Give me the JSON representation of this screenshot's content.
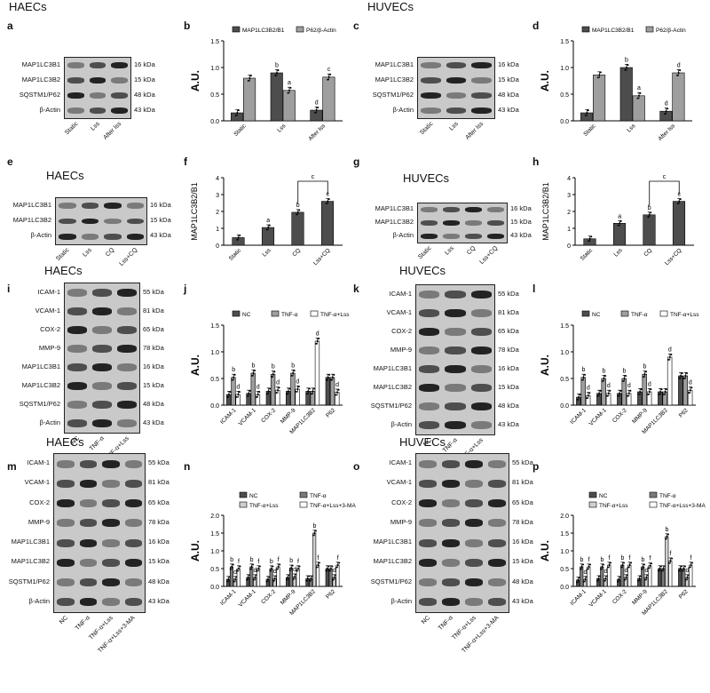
{
  "headers": {
    "a": "HAECs",
    "c": "HUVECs",
    "e": "HAECs",
    "g": "HUVECs",
    "i": "HAECs",
    "k": "HUVECs",
    "m": "HAECs",
    "o": "HUVECs"
  },
  "panel_letters": [
    "a",
    "b",
    "c",
    "d",
    "e",
    "f",
    "g",
    "h",
    "i",
    "j",
    "k",
    "l",
    "m",
    "n",
    "o",
    "p"
  ],
  "blots": {
    "a": {
      "rows": [
        {
          "label": "MAP1LC3B1",
          "kda": "16 kDa"
        },
        {
          "label": "MAP1LC3B2",
          "kda": "15 kDa"
        },
        {
          "label": "SQSTM1/P62",
          "kda": "48 kDa"
        },
        {
          "label": "β-Actin",
          "kda": "43 kDa"
        }
      ],
      "lanes": [
        "Static",
        "Lss",
        "After lss"
      ]
    },
    "c": {
      "rows": [
        {
          "label": "MAP1LC3B1",
          "kda": "16 kDa"
        },
        {
          "label": "MAP1LC3B2",
          "kda": "15 kDa"
        },
        {
          "label": "SQSTM1/P62",
          "kda": "48 kDa"
        },
        {
          "label": "β-Actin",
          "kda": "43 kDa"
        }
      ],
      "lanes": [
        "Static",
        "Lss",
        "After lss"
      ]
    },
    "e": {
      "rows": [
        {
          "label": "MAP1LC3B1",
          "kda": "16 kDa"
        },
        {
          "label": "MAP1LC3B2",
          "kda": "15 kDa"
        },
        {
          "label": "β-Actin",
          "kda": "43 kDa"
        }
      ],
      "lanes": [
        "Static",
        "Lss",
        "CQ",
        "Lss+CQ"
      ]
    },
    "g": {
      "rows": [
        {
          "label": "MAP1LC3B1",
          "kda": "16 kDa"
        },
        {
          "label": "MAP1LC3B2",
          "kda": "15 kDa"
        },
        {
          "label": "β-Actin",
          "kda": "43 kDa"
        }
      ],
      "lanes": [
        "Static",
        "Lss",
        "CQ",
        "Lss+CQ"
      ]
    },
    "i": {
      "rows": [
        {
          "label": "ICAM-1",
          "kda": "55 kDa"
        },
        {
          "label": "VCAM-1",
          "kda": "81 kDa"
        },
        {
          "label": "COX-2",
          "kda": "65 kDa"
        },
        {
          "label": "MMP-9",
          "kda": "78 kDa"
        },
        {
          "label": "MAP1LC3B1",
          "kda": "16 kDa"
        },
        {
          "label": "MAP1LC3B2",
          "kda": "15 kDa"
        },
        {
          "label": "SQSTM1/P62",
          "kda": "48 kDa"
        },
        {
          "label": "β-Actin",
          "kda": "43 kDa"
        }
      ],
      "lanes": [
        "NC",
        "TNF-α",
        "TNF-α+Lss"
      ]
    },
    "k": {
      "rows": [
        {
          "label": "ICAM-1",
          "kda": "55 kDa"
        },
        {
          "label": "VCAM-1",
          "kda": "81 kDa"
        },
        {
          "label": "COX-2",
          "kda": "65 kDa"
        },
        {
          "label": "MMP-9",
          "kda": "78 kDa"
        },
        {
          "label": "MAP1LC3B1",
          "kda": "16 kDa"
        },
        {
          "label": "MAP1LC3B2",
          "kda": "15 kDa"
        },
        {
          "label": "SQSTM1/P62",
          "kda": "48 kDa"
        },
        {
          "label": "β-Actin",
          "kda": "43 kDa"
        }
      ],
      "lanes": [
        "NC",
        "TNF-α",
        "TNF-α+Lss"
      ]
    },
    "m": {
      "rows": [
        {
          "label": "ICAM-1",
          "kda": "55 kDa"
        },
        {
          "label": "VCAM-1",
          "kda": "81 kDa"
        },
        {
          "label": "COX-2",
          "kda": "65 kDa"
        },
        {
          "label": "MMP-9",
          "kda": "78 kDa"
        },
        {
          "label": "MAP1LC3B1",
          "kda": "16 kDa"
        },
        {
          "label": "MAP1LC3B2",
          "kda": "15 kDa"
        },
        {
          "label": "SQSTM1/P62",
          "kda": "48 kDa"
        },
        {
          "label": "β-Actin",
          "kda": "43 kDa"
        }
      ],
      "lanes": [
        "NC",
        "TNF-α",
        "TNF-α+Lss",
        "TNF-α+Lss+3-MA"
      ]
    },
    "o": {
      "rows": [
        {
          "label": "ICAM-1",
          "kda": "55 kDa"
        },
        {
          "label": "VCAM-1",
          "kda": "81 kDa"
        },
        {
          "label": "COX-2",
          "kda": "65 kDa"
        },
        {
          "label": "MMP-9",
          "kda": "78 kDa"
        },
        {
          "label": "MAP1LC3B1",
          "kda": "16 kDa"
        },
        {
          "label": "MAP1LC3B2",
          "kda": "15 kDa"
        },
        {
          "label": "SQSTM1/P62",
          "kda": "48 kDa"
        },
        {
          "label": "β-Actin",
          "kda": "43 kDa"
        }
      ],
      "lanes": [
        "NC",
        "TNF-α",
        "TNF-α+Lss",
        "TNF-α+Lss+3-MA"
      ]
    }
  },
  "chart_data": [
    {
      "id": "b",
      "type": "bar",
      "ylabel": "A.U.",
      "ylim": [
        0,
        1.5
      ],
      "yticks": [
        "0.0",
        "0.5",
        "1.0",
        "1.5"
      ],
      "categories": [
        "Static",
        "Lss",
        "After lss"
      ],
      "series": [
        {
          "name": "MAP1LC3B2/B1",
          "color": "#4d4d4d",
          "values": [
            0.15,
            0.9,
            0.2
          ]
        },
        {
          "name": "P62/β-Actin",
          "color": "#9e9e9e",
          "values": [
            0.8,
            0.57,
            0.82
          ]
        }
      ],
      "letters": [
        [
          "",
          ""
        ],
        [
          "b",
          "a"
        ],
        [
          "d",
          "c"
        ]
      ]
    },
    {
      "id": "d",
      "type": "bar",
      "ylabel": "A.U.",
      "ylim": [
        0,
        1.5
      ],
      "yticks": [
        "0.0",
        "0.5",
        "1.0",
        "1.5"
      ],
      "categories": [
        "Static",
        "Lss",
        "After lss"
      ],
      "series": [
        {
          "name": "MAP1LC3B2/B1",
          "color": "#4d4d4d",
          "values": [
            0.15,
            1.0,
            0.18
          ]
        },
        {
          "name": "P62/β-Actin",
          "color": "#9e9e9e",
          "values": [
            0.86,
            0.47,
            0.9
          ]
        }
      ],
      "letters": [
        [
          "",
          ""
        ],
        [
          "b",
          "a"
        ],
        [
          "d",
          "d"
        ]
      ]
    },
    {
      "id": "f",
      "type": "bar",
      "ylabel": "MAP1LC3B2/B1",
      "ylim": [
        0,
        4
      ],
      "yticks": [
        "0",
        "1",
        "2",
        "3",
        "4"
      ],
      "categories": [
        "Static",
        "Lss",
        "CQ",
        "Lss+CQ"
      ],
      "series": [
        {
          "name": "",
          "color": "#4d4d4d",
          "values": [
            0.45,
            1.05,
            1.95,
            2.6
          ]
        }
      ],
      "letters": [
        [
          ""
        ],
        [
          "a"
        ],
        [
          "b"
        ],
        [
          "c"
        ]
      ],
      "bracket": {
        "from": 2,
        "to": 3,
        "label": "c"
      }
    },
    {
      "id": "h",
      "type": "bar",
      "ylabel": "MAP1LC3B2/B1",
      "ylim": [
        0,
        4
      ],
      "yticks": [
        "0",
        "1",
        "2",
        "3",
        "4"
      ],
      "categories": [
        "Static",
        "Lss",
        "CQ",
        "Lss+CQ"
      ],
      "series": [
        {
          "name": "",
          "color": "#4d4d4d",
          "values": [
            0.38,
            1.3,
            1.8,
            2.6
          ]
        }
      ],
      "letters": [
        [
          ""
        ],
        [
          "a"
        ],
        [
          "b"
        ],
        [
          "c"
        ]
      ],
      "bracket": {
        "from": 2,
        "to": 3,
        "label": "c"
      }
    },
    {
      "id": "j",
      "type": "bar",
      "ylabel": "A.U.",
      "ylim": [
        0,
        1.5
      ],
      "yticks": [
        "0.0",
        "0.5",
        "1.0",
        "1.5"
      ],
      "categories": [
        "ICAM-1",
        "VCAM-1",
        "COX-2",
        "MMP-9",
        "MAP1LC3B2",
        "P62"
      ],
      "series": [
        {
          "name": "NC",
          "color": "#4d4d4d",
          "values": [
            0.2,
            0.22,
            0.26,
            0.26,
            0.26,
            0.52
          ]
        },
        {
          "name": "TNF-α",
          "color": "#9e9e9e",
          "values": [
            0.52,
            0.6,
            0.58,
            0.6,
            0.26,
            0.52
          ]
        },
        {
          "name": "TNF-α+Lss",
          "color": "#ffffff",
          "values": [
            0.2,
            0.2,
            0.28,
            0.3,
            1.2,
            0.24
          ]
        }
      ],
      "letters": [
        [
          "",
          "b",
          "d"
        ],
        [
          "",
          "b",
          "d"
        ],
        [
          "",
          "b",
          "d"
        ],
        [
          "",
          "b",
          "d"
        ],
        [
          "",
          "",
          "d"
        ],
        [
          "",
          "",
          "d"
        ]
      ]
    },
    {
      "id": "l",
      "type": "bar",
      "ylabel": "A.U.",
      "ylim": [
        0,
        1.5
      ],
      "yticks": [
        "0.0",
        "0.5",
        "1.0",
        "1.5"
      ],
      "categories": [
        "ICAM-1",
        "VCAM-1",
        "COX-2",
        "MMP-9",
        "MAP1LC3B2",
        "P62"
      ],
      "series": [
        {
          "name": "NC",
          "color": "#4d4d4d",
          "values": [
            0.15,
            0.22,
            0.22,
            0.25,
            0.25,
            0.55
          ]
        },
        {
          "name": "TNF-α",
          "color": "#9e9e9e",
          "values": [
            0.52,
            0.5,
            0.5,
            0.58,
            0.25,
            0.55
          ]
        },
        {
          "name": "TNF-α+Lss",
          "color": "#ffffff",
          "values": [
            0.18,
            0.22,
            0.22,
            0.25,
            0.9,
            0.28
          ]
        }
      ],
      "letters": [
        [
          "",
          "b",
          "d"
        ],
        [
          "",
          "b",
          "d"
        ],
        [
          "",
          "b",
          "d"
        ],
        [
          "",
          "b",
          "d"
        ],
        [
          "",
          "",
          "d"
        ],
        [
          "",
          "",
          "d"
        ]
      ]
    },
    {
      "id": "n",
      "type": "bar",
      "ylabel": "A.U.",
      "ylim": [
        0,
        2.0
      ],
      "yticks": [
        "0.0",
        "0.5",
        "1.0",
        "1.5",
        "2.0"
      ],
      "categories": [
        "ICAM-1",
        "VCAM-1",
        "COX-2",
        "MMP-9",
        "MAP1LC3B2",
        "P62"
      ],
      "series": [
        {
          "name": "NC",
          "color": "#4d4d4d",
          "values": [
            0.2,
            0.25,
            0.2,
            0.25,
            0.22,
            0.5
          ]
        },
        {
          "name": "TNF-α",
          "color": "#7a7a7a",
          "values": [
            0.55,
            0.55,
            0.5,
            0.52,
            0.22,
            0.5
          ]
        },
        {
          "name": "TNF-α+Lss",
          "color": "#d0d0d0",
          "values": [
            0.2,
            0.25,
            0.22,
            0.27,
            1.5,
            0.25
          ]
        },
        {
          "name": "TNF-α+Lss+3-MA",
          "color": "#ffffff",
          "values": [
            0.5,
            0.5,
            0.55,
            0.5,
            0.6,
            0.6
          ]
        }
      ],
      "letters": [
        [
          "",
          "b",
          "d",
          "f"
        ],
        [
          "",
          "b",
          "d",
          "f"
        ],
        [
          "",
          "b",
          "d",
          "f"
        ],
        [
          "",
          "b",
          "d",
          "f"
        ],
        [
          "",
          "",
          "b",
          "f"
        ],
        [
          "",
          "",
          "d",
          "f"
        ]
      ]
    },
    {
      "id": "p",
      "type": "bar",
      "ylabel": "A.U.",
      "ylim": [
        0,
        2.0
      ],
      "yticks": [
        "0.0",
        "0.5",
        "1.0",
        "1.5",
        "2.0"
      ],
      "categories": [
        "ICAM-1",
        "VCAM-1",
        "COX-2",
        "MMP-9",
        "MAP1LC3B2",
        "P62"
      ],
      "series": [
        {
          "name": "NC",
          "color": "#4d4d4d",
          "values": [
            0.18,
            0.22,
            0.2,
            0.22,
            0.5,
            0.5
          ]
        },
        {
          "name": "TNF-α",
          "color": "#7a7a7a",
          "values": [
            0.55,
            0.55,
            0.6,
            0.55,
            0.5,
            0.5
          ]
        },
        {
          "name": "TNF-α+Lss",
          "color": "#d0d0d0",
          "values": [
            0.2,
            0.22,
            0.25,
            0.25,
            1.4,
            0.25
          ]
        },
        {
          "name": "TNF-α+Lss+3-MA",
          "color": "#ffffff",
          "values": [
            0.55,
            0.6,
            0.6,
            0.58,
            0.72,
            0.6
          ]
        }
      ],
      "letters": [
        [
          "",
          "b",
          "d",
          "f"
        ],
        [
          "",
          "b",
          "d",
          "f"
        ],
        [
          "",
          "b",
          "d",
          "f"
        ],
        [
          "",
          "b",
          "d",
          "f"
        ],
        [
          "",
          "",
          "b",
          "f"
        ],
        [
          "",
          "",
          "d",
          "f"
        ]
      ]
    }
  ]
}
